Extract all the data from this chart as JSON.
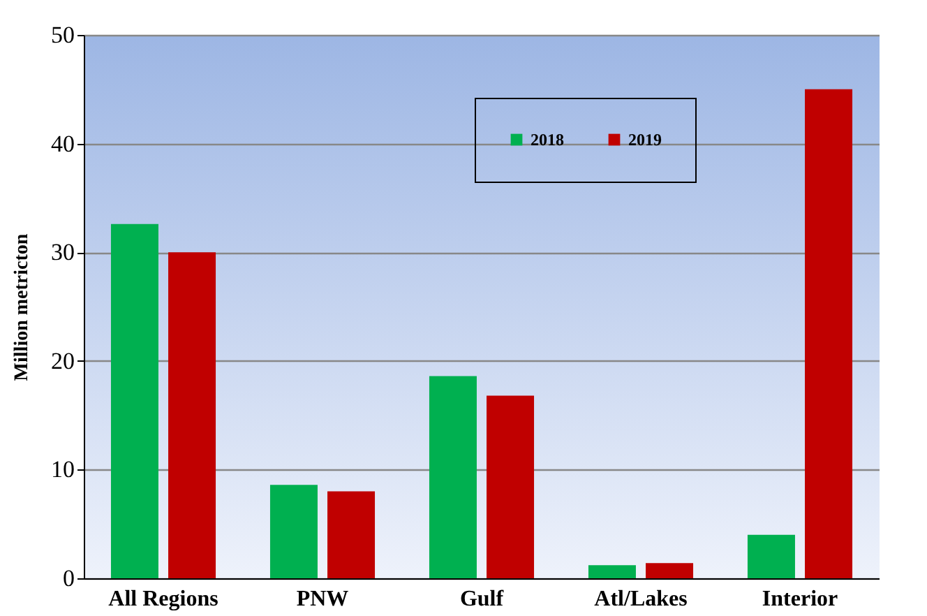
{
  "chart_data": {
    "type": "bar",
    "ylabel": "Million metricton",
    "categories": [
      "All Regions",
      "PNW",
      "Gulf",
      "Atl/Lakes",
      "Interior"
    ],
    "series": [
      {
        "name": "2018",
        "color": "#00b050",
        "values": [
          32.6,
          8.6,
          18.6,
          1.2,
          4.0
        ]
      },
      {
        "name": "2019",
        "color": "#c00000",
        "values": [
          30.0,
          8.0,
          16.8,
          1.4,
          45.0
        ]
      }
    ],
    "ylim": [
      0,
      50
    ],
    "yticks": [
      0,
      10,
      20,
      30,
      40,
      50
    ],
    "grid": "y",
    "legend": "top right"
  }
}
